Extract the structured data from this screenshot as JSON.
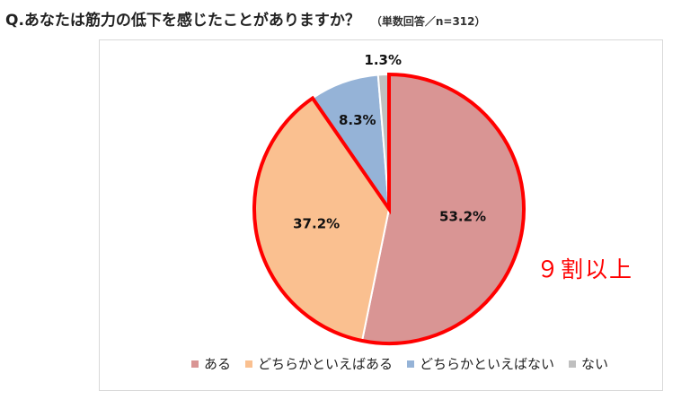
{
  "question": {
    "title": "Q.あなたは筋力の低下を感じたことがありますか？",
    "note": "（単数回答／n=312）"
  },
  "callout": "９割以上",
  "chart_data": {
    "type": "pie",
    "start_angle_deg": 0,
    "direction": "clockwise",
    "highlight": [
      "ある",
      "どちらかといえばある"
    ],
    "highlight_color": "#ff0000",
    "slices": [
      {
        "label": "ある",
        "value": 53.2,
        "value_label": "53.2%",
        "color": "#d99594"
      },
      {
        "label": "どちらかといえばある",
        "value": 37.2,
        "value_label": "37.2%",
        "color": "#fac090"
      },
      {
        "label": "どちらかといえばない",
        "value": 8.3,
        "value_label": "8.3%",
        "color": "#95b3d7"
      },
      {
        "label": "ない",
        "value": 1.3,
        "value_label": "1.3%",
        "color": "#bfbfbf"
      }
    ],
    "legend_position": "bottom"
  }
}
